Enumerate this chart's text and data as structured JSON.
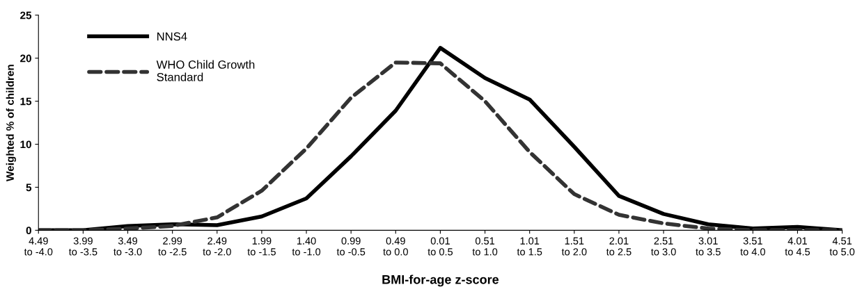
{
  "chart_data": {
    "type": "line",
    "xlabel": "BMI-for-age z-score",
    "ylabel": "Weighted % of children",
    "categories": [
      "4.49\nto -4.0",
      "3.99\nto -3.5",
      "3.49\nto -3.0",
      "2.99\nto -2.5",
      "2.49\nto -2.0",
      "1.99\nto -1.5",
      "1.40\nto -1.0",
      "0.99\nto -0.5",
      "0.49\nto 0.0",
      "0.01\nto 0.5",
      "0.51\nto 1.0",
      "1.01\nto 1.5",
      "1.51\nto 2.0",
      "2.01\nto 2.5",
      "2.51\nto 3.0",
      "3.01\nto 3.5",
      "3.51\nto 4.0",
      "4.01\nto 4.5",
      "4.51\nto 5.0"
    ],
    "series": [
      {
        "name": "NNS4",
        "color": "#000000",
        "line_style": "solid",
        "values": [
          0,
          0,
          0.5,
          0.7,
          0.6,
          1.6,
          3.7,
          8.6,
          13.9,
          21.2,
          17.7,
          15.2,
          9.7,
          4.0,
          1.9,
          0.7,
          0.2,
          0.4,
          0
        ]
      },
      {
        "name": "WHO Child Growth\nStandard",
        "color": "#333333",
        "line_style": "dashed",
        "values": [
          0,
          0,
          0.2,
          0.5,
          1.5,
          4.6,
          9.5,
          15.4,
          19.5,
          19.4,
          15.0,
          9.1,
          4.2,
          1.8,
          0.8,
          0.2,
          0,
          0,
          0
        ]
      }
    ],
    "ylim": [
      0,
      25
    ],
    "yticks": [
      0,
      5,
      10,
      15,
      20,
      25
    ],
    "grid": false,
    "legend": "top left",
    "marker": "none"
  }
}
